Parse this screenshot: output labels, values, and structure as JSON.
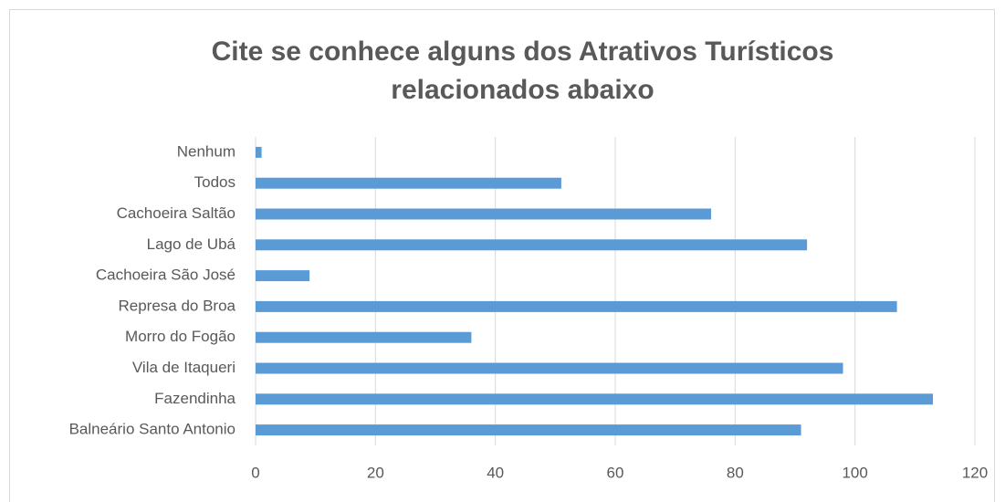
{
  "chart_data": {
    "type": "bar",
    "orientation": "horizontal",
    "title": "Cite se conhece alguns dos Atrativos Turísticos relacionados abaixo",
    "categories": [
      "Nenhum",
      "Todos",
      "Cachoeira Saltão",
      "Lago de Ubá",
      "Cachoeira São José",
      "Represa do Broa",
      "Morro do Fogão",
      "Vila de Itaqueri",
      "Fazendinha",
      "Balneário Santo Antonio"
    ],
    "values": [
      1,
      51,
      76,
      92,
      9,
      107,
      36,
      98,
      113,
      91
    ],
    "color": "#5b9bd5",
    "xlim": [
      0,
      120
    ],
    "xticks": [
      0,
      20,
      40,
      60,
      80,
      100,
      120
    ],
    "grid": true
  }
}
